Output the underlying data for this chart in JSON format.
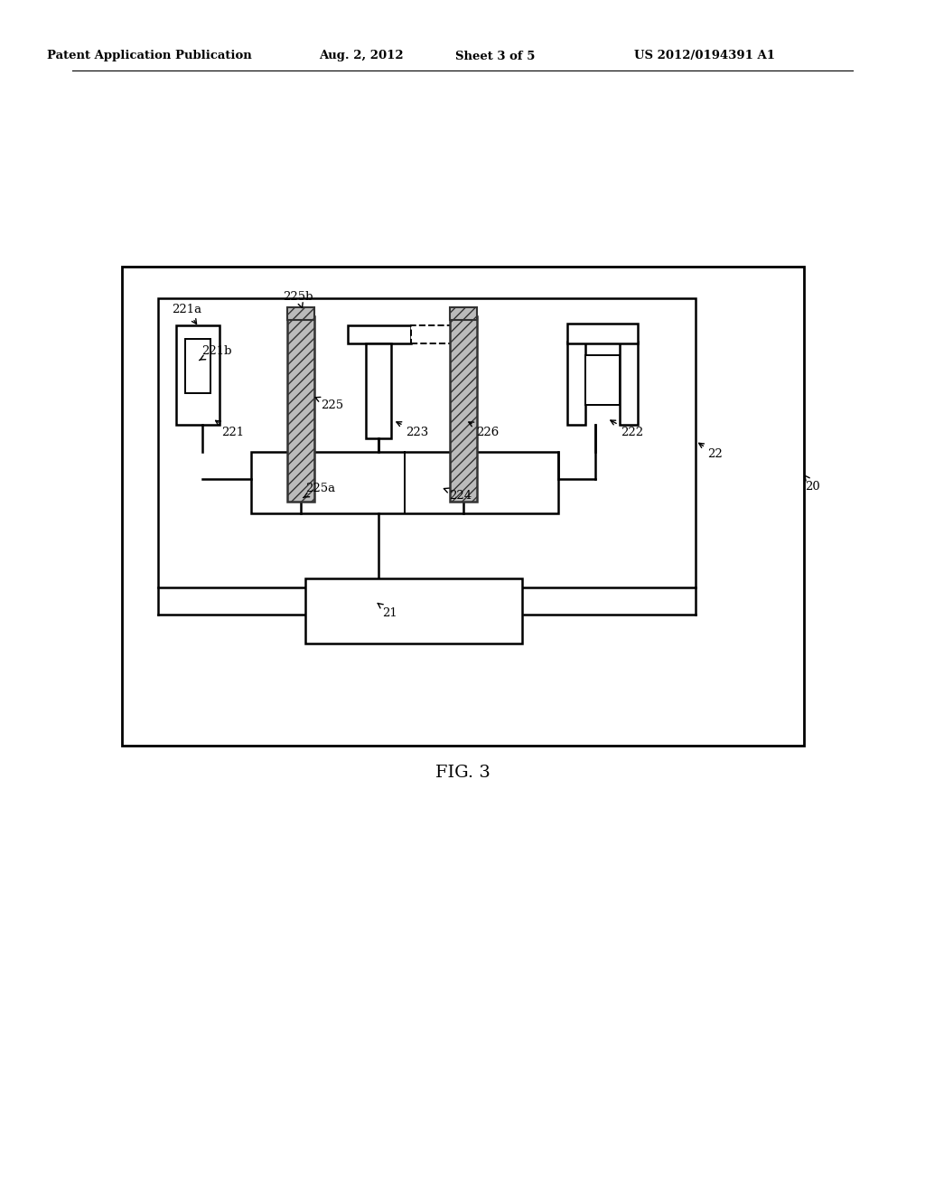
{
  "bg_color": "#ffffff",
  "line_color": "#000000",
  "header_text": "Patent Application Publication",
  "header_date": "Aug. 2, 2012",
  "header_sheet": "Sheet 3 of 5",
  "header_patent": "US 2012/0194391 A1",
  "fig_label": "FIG. 3"
}
